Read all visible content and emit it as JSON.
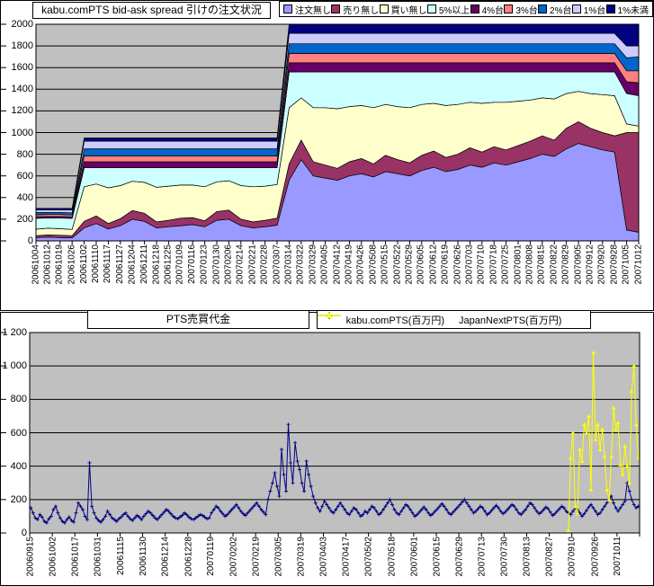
{
  "chart_data": [
    {
      "type": "area",
      "stacked": true,
      "title": "kabu.comPTS bid-ask spread 引けの注文状況",
      "ylim": [
        0,
        2000
      ],
      "ytick_step": 200,
      "y_tick_labels": [
        "2000",
        "1800",
        "1600",
        "1400",
        "1200",
        "1000",
        "800",
        "600",
        "400",
        "200",
        "0"
      ],
      "grid": true,
      "legend_position": "top",
      "plot_bg": "#C0C0C0",
      "x_labels": [
        "20061004",
        "20061012",
        "20061019",
        "20061026",
        "20061102",
        "20061110",
        "20061117",
        "20061127",
        "20061204",
        "20061211",
        "20061218",
        "20061225",
        "20070109",
        "20070116",
        "20070123",
        "20070130",
        "20070206",
        "20070214",
        "20070221",
        "20070228",
        "20070307",
        "20070314",
        "20070322",
        "20070329",
        "20070405",
        "20070412",
        "20070419",
        "20070426",
        "20070508",
        "20070515",
        "20070522",
        "20070529",
        "20070605",
        "20070612",
        "20070619",
        "20070626",
        "20070703",
        "20070710",
        "20070718",
        "20070725",
        "20070801",
        "20070808",
        "20070815",
        "20070822",
        "20070829",
        "20070905",
        "20070912",
        "20070920",
        "20070928",
        "20071005",
        "20071012"
      ],
      "series": [
        {
          "name": "注文無し",
          "color": "#9999FF",
          "values": [
            30,
            35,
            30,
            28,
            120,
            160,
            110,
            140,
            200,
            180,
            120,
            130,
            140,
            150,
            130,
            190,
            200,
            140,
            120,
            130,
            145,
            560,
            750,
            600,
            580,
            560,
            600,
            620,
            590,
            640,
            620,
            600,
            650,
            680,
            640,
            660,
            700,
            680,
            720,
            700,
            730,
            760,
            800,
            780,
            850,
            900,
            870,
            840,
            820,
            100,
            80
          ]
        },
        {
          "name": "売り無し",
          "color": "#993366",
          "values": [
            18,
            20,
            22,
            20,
            60,
            70,
            50,
            65,
            80,
            75,
            55,
            60,
            70,
            65,
            55,
            80,
            85,
            60,
            55,
            60,
            65,
            150,
            180,
            130,
            120,
            110,
            130,
            140,
            120,
            150,
            130,
            120,
            140,
            150,
            130,
            140,
            160,
            140,
            150,
            140,
            150,
            160,
            170,
            150,
            190,
            200,
            170,
            160,
            150,
            900,
            920
          ]
        },
        {
          "name": "買い無し",
          "color": "#FFFFCC",
          "values": [
            60,
            62,
            60,
            58,
            320,
            295,
            330,
            305,
            270,
            285,
            320,
            315,
            305,
            300,
            315,
            275,
            270,
            310,
            325,
            315,
            310,
            520,
            390,
            500,
            530,
            550,
            510,
            490,
            520,
            470,
            490,
            510,
            470,
            440,
            480,
            460,
            420,
            450,
            410,
            440,
            410,
            380,
            350,
            380,
            320,
            280,
            320,
            350,
            370,
            80,
            60
          ]
        },
        {
          "name": "5%以上",
          "color": "#CCFFFF",
          "values": [
            100,
            95,
            98,
            102,
            175,
            150,
            185,
            165,
            125,
            135,
            180,
            170,
            160,
            160,
            175,
            130,
            120,
            165,
            175,
            170,
            155,
            330,
            240,
            330,
            330,
            340,
            320,
            310,
            330,
            300,
            320,
            330,
            300,
            290,
            310,
            300,
            280,
            290,
            280,
            280,
            270,
            260,
            240,
            250,
            200,
            180,
            200,
            210,
            220,
            280,
            280
          ]
        },
        {
          "name": "4%台",
          "color": "#660066",
          "values": [
            15,
            14,
            15,
            14,
            55,
            55,
            55,
            55,
            55,
            55,
            55,
            55,
            55,
            55,
            55,
            55,
            55,
            55,
            55,
            55,
            55,
            85,
            85,
            85,
            85,
            85,
            85,
            85,
            85,
            85,
            85,
            85,
            85,
            85,
            85,
            85,
            85,
            85,
            85,
            85,
            85,
            85,
            85,
            85,
            85,
            85,
            85,
            85,
            85,
            110,
            120
          ]
        },
        {
          "name": "3%台",
          "color": "#FF8080",
          "values": [
            18,
            17,
            18,
            17,
            55,
            55,
            55,
            55,
            55,
            55,
            55,
            55,
            55,
            55,
            55,
            55,
            55,
            55,
            55,
            55,
            55,
            85,
            85,
            85,
            85,
            85,
            85,
            85,
            85,
            85,
            85,
            85,
            85,
            85,
            85,
            85,
            85,
            85,
            85,
            85,
            85,
            85,
            85,
            85,
            85,
            85,
            85,
            85,
            85,
            100,
            110
          ]
        },
        {
          "name": "2%台",
          "color": "#0066CC",
          "values": [
            20,
            20,
            20,
            20,
            65,
            65,
            65,
            65,
            65,
            65,
            65,
            65,
            65,
            65,
            65,
            65,
            65,
            65,
            65,
            65,
            65,
            90,
            90,
            90,
            90,
            90,
            90,
            90,
            90,
            90,
            90,
            90,
            90,
            90,
            90,
            90,
            90,
            90,
            90,
            90,
            90,
            90,
            90,
            90,
            90,
            90,
            90,
            90,
            90,
            120,
            130
          ]
        },
        {
          "name": "1%台",
          "color": "#CCCCFF",
          "values": [
            25,
            24,
            25,
            26,
            70,
            70,
            70,
            70,
            70,
            70,
            70,
            70,
            70,
            70,
            70,
            70,
            70,
            70,
            70,
            70,
            70,
            95,
            95,
            95,
            95,
            95,
            95,
            95,
            95,
            95,
            95,
            95,
            95,
            95,
            95,
            95,
            95,
            95,
            95,
            95,
            95,
            95,
            95,
            95,
            95,
            95,
            95,
            95,
            95,
            110,
            100
          ]
        },
        {
          "name": "1%未満",
          "color": "#000080",
          "values": [
            14,
            13,
            12,
            15,
            30,
            30,
            30,
            30,
            30,
            30,
            30,
            30,
            30,
            30,
            30,
            30,
            30,
            30,
            30,
            30,
            30,
            85,
            85,
            85,
            85,
            85,
            85,
            85,
            85,
            85,
            85,
            85,
            85,
            85,
            85,
            85,
            85,
            85,
            85,
            85,
            85,
            85,
            85,
            85,
            85,
            85,
            85,
            85,
            85,
            200,
            200
          ]
        }
      ]
    },
    {
      "type": "line",
      "title": "PTS売買代金",
      "ylim": [
        0,
        1200
      ],
      "ytick_step": 200,
      "y_tick_labels": [
        "1 200",
        "1 000",
        "800",
        "600",
        "400",
        "200",
        "0"
      ],
      "grid": true,
      "legend_position": "top",
      "plot_bg": "#C0C0C0",
      "points_per_label": 10,
      "x_labels": [
        "20060915",
        "20061002",
        "20061017",
        "20061031",
        "20061115",
        "20061130",
        "20061214",
        "20061228",
        "20070119",
        "20070202",
        "20070219",
        "20070305",
        "20070319",
        "20070403",
        "20070417",
        "20070502",
        "20070518",
        "20070601",
        "20070615",
        "20070629",
        "20070713",
        "20070730",
        "20070813",
        "20070827",
        "20070910",
        "20070926",
        "20071011"
      ],
      "series": [
        {
          "name": "kabu.comPTS(百万円)",
          "color": "#000080",
          "marker": "plus",
          "start_index": 0,
          "values": [
            150,
            120,
            90,
            80,
            110,
            95,
            70,
            60,
            85,
            100,
            140,
            160,
            120,
            90,
            70,
            60,
            80,
            95,
            75,
            65,
            120,
            180,
            160,
            140,
            100,
            80,
            420,
            160,
            120,
            90,
            75,
            65,
            80,
            100,
            130,
            110,
            90,
            80,
            70,
            85,
            95,
            110,
            120,
            100,
            85,
            75,
            90,
            105,
            95,
            80,
            100,
            115,
            130,
            120,
            105,
            90,
            80,
            95,
            110,
            125,
            140,
            130,
            115,
            100,
            90,
            85,
            95,
            105,
            120,
            110,
            95,
            85,
            80,
            90,
            100,
            110,
            105,
            95,
            85,
            90,
            120,
            140,
            160,
            150,
            130,
            115,
            100,
            110,
            125,
            140,
            155,
            170,
            150,
            130,
            115,
            105,
            120,
            135,
            150,
            165,
            180,
            160,
            140,
            125,
            110,
            200,
            250,
            300,
            360,
            280,
            220,
            500,
            350,
            250,
            650,
            420,
            300,
            540,
            430,
            380,
            300,
            250,
            430,
            350,
            280,
            220,
            180,
            150,
            130,
            160,
            190,
            170,
            150,
            130,
            120,
            140,
            160,
            180,
            160,
            140,
            120,
            110,
            130,
            150,
            140,
            120,
            100,
            110,
            130,
            120,
            140,
            160,
            150,
            130,
            110,
            120,
            140,
            160,
            180,
            200,
            170,
            140,
            120,
            110,
            130,
            150,
            170,
            160,
            140,
            120,
            100,
            110,
            125,
            140,
            155,
            140,
            120,
            105,
            115,
            130,
            145,
            160,
            175,
            160,
            140,
            120,
            110,
            125,
            140,
            155,
            170,
            185,
            200,
            180,
            160,
            140,
            120,
            130,
            145,
            160,
            150,
            130,
            110,
            120,
            135,
            150,
            165,
            150,
            130,
            115,
            125,
            140,
            155,
            170,
            160,
            140,
            120,
            110,
            125,
            140,
            160,
            180,
            170,
            150,
            130,
            115,
            125,
            140,
            155,
            145,
            125,
            105,
            115,
            130,
            145,
            160,
            150,
            130,
            120,
            110,
            130,
            150,
            140,
            120,
            100,
            115,
            135,
            155,
            170,
            150,
            130,
            110,
            120,
            140,
            160,
            180,
            200,
            220,
            180,
            150,
            130,
            150,
            170,
            190,
            300,
            250,
            200,
            170,
            150,
            160
          ]
        },
        {
          "name": "JapanNextPTS(百万円)",
          "color": "#FFFF00",
          "marker": "triangle",
          "start_index": 238,
          "values": [
            15,
            450,
            600,
            160,
            120,
            500,
            430,
            650,
            600,
            700,
            260,
            1080,
            560,
            650,
            500,
            620,
            460,
            260,
            200,
            460,
            750,
            620,
            660,
            410,
            350,
            520,
            400,
            300,
            850,
            1000,
            650,
            450
          ]
        }
      ]
    }
  ]
}
